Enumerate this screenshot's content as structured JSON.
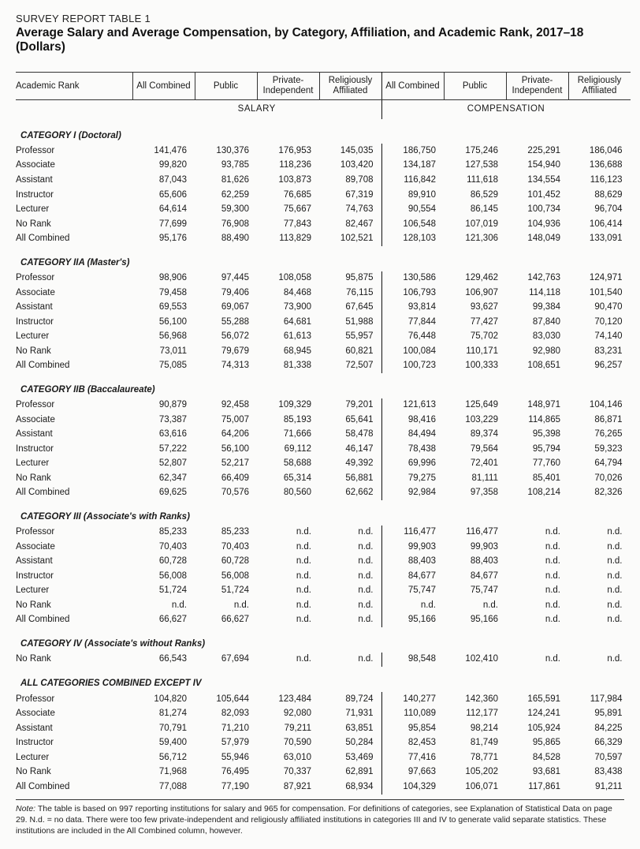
{
  "super_title": "SURVEY REPORT TABLE 1",
  "title": "Average Salary and Average Compensation, by Category, Affiliation, and Academic Rank, 2017–18 (Dollars)",
  "columns": {
    "rank_header": "Academic Rank",
    "group_labels": [
      "All Combined",
      "Public",
      "Private-Independent",
      "Religiously Affiliated"
    ],
    "section_labels": {
      "salary": "SALARY",
      "compensation": "COMPENSATION"
    }
  },
  "footnote": {
    "label": "Note:",
    "text": "The table is based on 997 reporting institutions for salary and 965 for compensation. For definitions of categories, see Explanation of Statistical Data on page 29. N.d. = no data. There were too few private-independent and religiously affiliated institutions in categories III and IV to generate valid separate statistics. These institutions are included in the All Combined column, however."
  },
  "categories": [
    {
      "name": "CATEGORY I (Doctoral)",
      "rows": [
        {
          "rank": "Professor",
          "salary": [
            "141,476",
            "130,376",
            "176,953",
            "145,035"
          ],
          "comp": [
            "186,750",
            "175,246",
            "225,291",
            "186,046"
          ]
        },
        {
          "rank": "Associate",
          "salary": [
            "99,820",
            "93,785",
            "118,236",
            "103,420"
          ],
          "comp": [
            "134,187",
            "127,538",
            "154,940",
            "136,688"
          ]
        },
        {
          "rank": "Assistant",
          "salary": [
            "87,043",
            "81,626",
            "103,873",
            "89,708"
          ],
          "comp": [
            "116,842",
            "111,618",
            "134,554",
            "116,123"
          ]
        },
        {
          "rank": "Instructor",
          "salary": [
            "65,606",
            "62,259",
            "76,685",
            "67,319"
          ],
          "comp": [
            "89,910",
            "86,529",
            "101,452",
            "88,629"
          ]
        },
        {
          "rank": "Lecturer",
          "salary": [
            "64,614",
            "59,300",
            "75,667",
            "74,763"
          ],
          "comp": [
            "90,554",
            "86,145",
            "100,734",
            "96,704"
          ]
        },
        {
          "rank": "No Rank",
          "salary": [
            "77,699",
            "76,908",
            "77,843",
            "82,467"
          ],
          "comp": [
            "106,548",
            "107,019",
            "104,936",
            "106,414"
          ]
        },
        {
          "rank": "All Combined",
          "salary": [
            "95,176",
            "88,490",
            "113,829",
            "102,521"
          ],
          "comp": [
            "128,103",
            "121,306",
            "148,049",
            "133,091"
          ]
        }
      ]
    },
    {
      "name": "CATEGORY IIA (Master's)",
      "rows": [
        {
          "rank": "Professor",
          "salary": [
            "98,906",
            "97,445",
            "108,058",
            "95,875"
          ],
          "comp": [
            "130,586",
            "129,462",
            "142,763",
            "124,971"
          ]
        },
        {
          "rank": "Associate",
          "salary": [
            "79,458",
            "79,406",
            "84,468",
            "76,115"
          ],
          "comp": [
            "106,793",
            "106,907",
            "114,118",
            "101,540"
          ]
        },
        {
          "rank": "Assistant",
          "salary": [
            "69,553",
            "69,067",
            "73,900",
            "67,645"
          ],
          "comp": [
            "93,814",
            "93,627",
            "99,384",
            "90,470"
          ]
        },
        {
          "rank": "Instructor",
          "salary": [
            "56,100",
            "55,288",
            "64,681",
            "51,988"
          ],
          "comp": [
            "77,844",
            "77,427",
            "87,840",
            "70,120"
          ]
        },
        {
          "rank": "Lecturer",
          "salary": [
            "56,968",
            "56,072",
            "61,613",
            "55,957"
          ],
          "comp": [
            "76,448",
            "75,702",
            "83,030",
            "74,140"
          ]
        },
        {
          "rank": "No Rank",
          "salary": [
            "73,011",
            "79,679",
            "68,945",
            "60,821"
          ],
          "comp": [
            "100,084",
            "110,171",
            "92,980",
            "83,231"
          ]
        },
        {
          "rank": "All Combined",
          "salary": [
            "75,085",
            "74,313",
            "81,338",
            "72,507"
          ],
          "comp": [
            "100,723",
            "100,333",
            "108,651",
            "96,257"
          ]
        }
      ]
    },
    {
      "name": "CATEGORY IIB (Baccalaureate)",
      "rows": [
        {
          "rank": "Professor",
          "salary": [
            "90,879",
            "92,458",
            "109,329",
            "79,201"
          ],
          "comp": [
            "121,613",
            "125,649",
            "148,971",
            "104,146"
          ]
        },
        {
          "rank": "Associate",
          "salary": [
            "73,387",
            "75,007",
            "85,193",
            "65,641"
          ],
          "comp": [
            "98,416",
            "103,229",
            "114,865",
            "86,871"
          ]
        },
        {
          "rank": "Assistant",
          "salary": [
            "63,616",
            "64,206",
            "71,666",
            "58,478"
          ],
          "comp": [
            "84,494",
            "89,374",
            "95,398",
            "76,265"
          ]
        },
        {
          "rank": "Instructor",
          "salary": [
            "57,222",
            "56,100",
            "69,112",
            "46,147"
          ],
          "comp": [
            "78,438",
            "79,564",
            "95,794",
            "59,323"
          ]
        },
        {
          "rank": "Lecturer",
          "salary": [
            "52,807",
            "52,217",
            "58,688",
            "49,392"
          ],
          "comp": [
            "69,996",
            "72,401",
            "77,760",
            "64,794"
          ]
        },
        {
          "rank": "No Rank",
          "salary": [
            "62,347",
            "66,409",
            "65,314",
            "56,881"
          ],
          "comp": [
            "79,275",
            "81,111",
            "85,401",
            "70,026"
          ]
        },
        {
          "rank": "All Combined",
          "salary": [
            "69,625",
            "70,576",
            "80,560",
            "62,662"
          ],
          "comp": [
            "92,984",
            "97,358",
            "108,214",
            "82,326"
          ]
        }
      ]
    },
    {
      "name": "CATEGORY III (Associate's with Ranks)",
      "rows": [
        {
          "rank": "Professor",
          "salary": [
            "85,233",
            "85,233",
            "n.d.",
            "n.d."
          ],
          "comp": [
            "116,477",
            "116,477",
            "n.d.",
            "n.d."
          ]
        },
        {
          "rank": "Associate",
          "salary": [
            "70,403",
            "70,403",
            "n.d.",
            "n.d."
          ],
          "comp": [
            "99,903",
            "99,903",
            "n.d.",
            "n.d."
          ]
        },
        {
          "rank": "Assistant",
          "salary": [
            "60,728",
            "60,728",
            "n.d.",
            "n.d."
          ],
          "comp": [
            "88,403",
            "88,403",
            "n.d.",
            "n.d."
          ]
        },
        {
          "rank": "Instructor",
          "salary": [
            "56,008",
            "56,008",
            "n.d.",
            "n.d."
          ],
          "comp": [
            "84,677",
            "84,677",
            "n.d.",
            "n.d."
          ]
        },
        {
          "rank": "Lecturer",
          "salary": [
            "51,724",
            "51,724",
            "n.d.",
            "n.d."
          ],
          "comp": [
            "75,747",
            "75,747",
            "n.d.",
            "n.d."
          ]
        },
        {
          "rank": "No Rank",
          "salary": [
            "n.d.",
            "n.d.",
            "n.d.",
            "n.d."
          ],
          "comp": [
            "n.d.",
            "n.d.",
            "n.d.",
            "n.d."
          ]
        },
        {
          "rank": "All Combined",
          "salary": [
            "66,627",
            "66,627",
            "n.d.",
            "n.d."
          ],
          "comp": [
            "95,166",
            "95,166",
            "n.d.",
            "n.d."
          ]
        }
      ]
    },
    {
      "name": "CATEGORY IV (Associate's without Ranks)",
      "rows": [
        {
          "rank": "No Rank",
          "salary": [
            "66,543",
            "67,694",
            "n.d.",
            "n.d."
          ],
          "comp": [
            "98,548",
            "102,410",
            "n.d.",
            "n.d."
          ]
        }
      ]
    },
    {
      "name": "ALL CATEGORIES COMBINED EXCEPT IV",
      "rows": [
        {
          "rank": "Professor",
          "salary": [
            "104,820",
            "105,644",
            "123,484",
            "89,724"
          ],
          "comp": [
            "140,277",
            "142,360",
            "165,591",
            "117,984"
          ]
        },
        {
          "rank": "Associate",
          "salary": [
            "81,274",
            "82,093",
            "92,080",
            "71,931"
          ],
          "comp": [
            "110,089",
            "112,177",
            "124,241",
            "95,891"
          ]
        },
        {
          "rank": "Assistant",
          "salary": [
            "70,791",
            "71,210",
            "79,211",
            "63,851"
          ],
          "comp": [
            "95,854",
            "98,214",
            "105,924",
            "84,225"
          ]
        },
        {
          "rank": "Instructor",
          "salary": [
            "59,400",
            "57,979",
            "70,590",
            "50,284"
          ],
          "comp": [
            "82,453",
            "81,749",
            "95,865",
            "66,329"
          ]
        },
        {
          "rank": "Lecturer",
          "salary": [
            "56,712",
            "55,946",
            "63,010",
            "53,469"
          ],
          "comp": [
            "77,416",
            "78,771",
            "84,528",
            "70,597"
          ]
        },
        {
          "rank": "No Rank",
          "salary": [
            "71,968",
            "76,495",
            "70,337",
            "62,891"
          ],
          "comp": [
            "97,663",
            "105,202",
            "93,681",
            "83,438"
          ]
        },
        {
          "rank": "All Combined",
          "salary": [
            "77,088",
            "77,190",
            "87,921",
            "68,934"
          ],
          "comp": [
            "104,329",
            "106,071",
            "117,861",
            "91,211"
          ]
        }
      ]
    }
  ]
}
